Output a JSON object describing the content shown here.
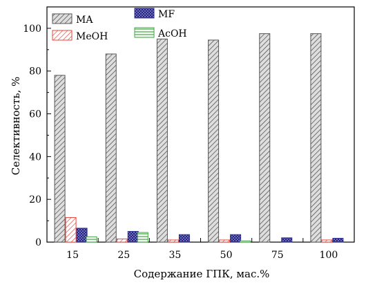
{
  "chart_data": {
    "type": "bar",
    "title": "",
    "xlabel": "Содержание ГПК, мас.%",
    "ylabel": "Селективность, %",
    "categories": [
      "15",
      "25",
      "35",
      "50",
      "75",
      "100"
    ],
    "ylim": [
      0,
      110
    ],
    "yticks": [
      0,
      20,
      40,
      60,
      80,
      100
    ],
    "legend_position": "top-left",
    "series": [
      {
        "name": "MA",
        "values": [
          78,
          88,
          95,
          94.5,
          97.5,
          97.5
        ],
        "color": "#555555",
        "fill": "#d8d8d8",
        "pattern": "diag"
      },
      {
        "name": "MeOH",
        "values": [
          11.5,
          1.5,
          1.0,
          1.0,
          0,
          1.0
        ],
        "color": "#e8463c",
        "fill": "#ffffff",
        "pattern": "diag"
      },
      {
        "name": "MF",
        "values": [
          6.5,
          5.0,
          3.5,
          3.5,
          2.0,
          1.8
        ],
        "color": "#2a2a8c",
        "fill": "#7c7cc8",
        "pattern": "cross"
      },
      {
        "name": "AcOH",
        "values": [
          2.5,
          4.5,
          0,
          0.6,
          0,
          0
        ],
        "color": "#3aa83a",
        "fill": "#ffffff",
        "pattern": "horiz"
      }
    ]
  }
}
